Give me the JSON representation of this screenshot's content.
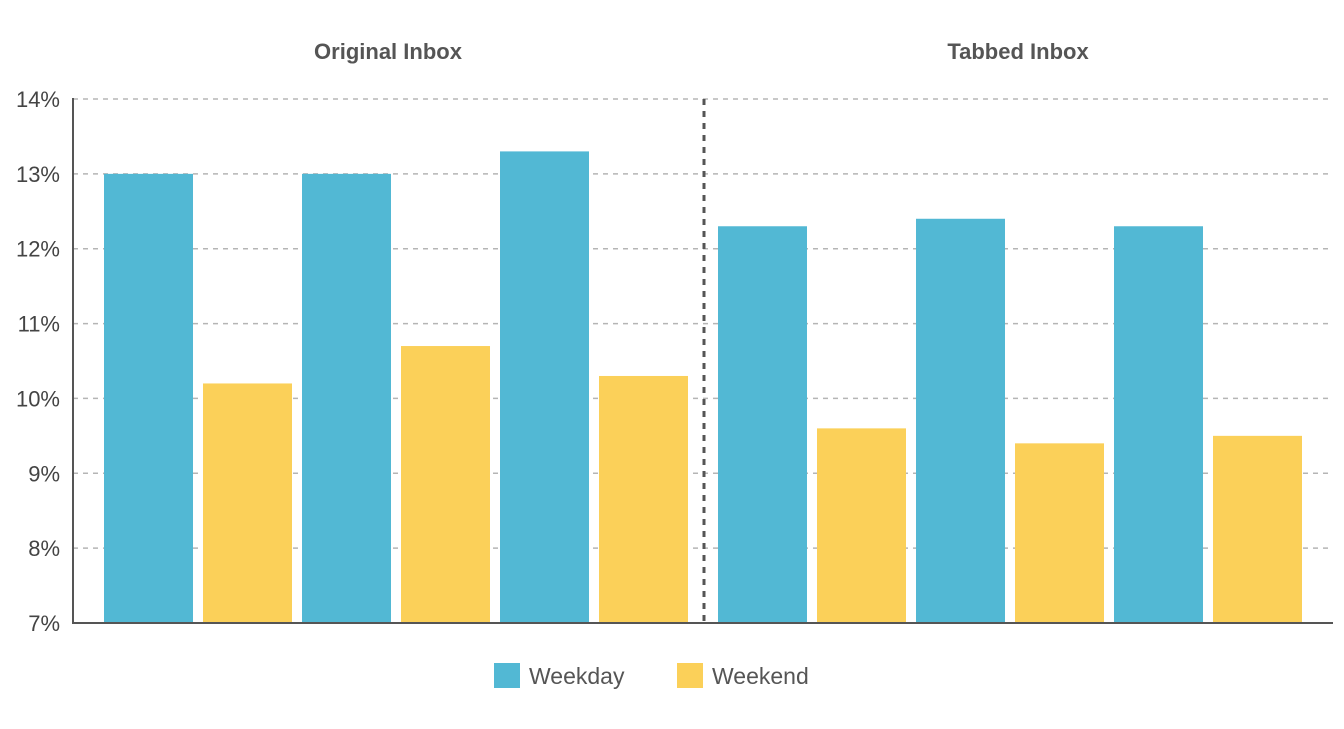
{
  "chart_data": {
    "type": "bar",
    "panels": [
      {
        "title": "Original Inbox",
        "groups": 3,
        "series": [
          {
            "name": "Weekday",
            "values": [
              13.0,
              13.0,
              13.3
            ]
          },
          {
            "name": "Weekend",
            "values": [
              10.2,
              10.7,
              10.3
            ]
          }
        ]
      },
      {
        "title": "Tabbed Inbox",
        "groups": 3,
        "series": [
          {
            "name": "Weekday",
            "values": [
              12.3,
              12.4,
              12.3
            ]
          },
          {
            "name": "Weekend",
            "values": [
              9.6,
              9.4,
              9.5
            ]
          }
        ]
      }
    ],
    "ylim": [
      7,
      14
    ],
    "yticks": [
      "7%",
      "8%",
      "9%",
      "10%",
      "11%",
      "12%",
      "13%",
      "14%"
    ],
    "grid": true,
    "legend": {
      "placement": "bottom-center",
      "items": [
        {
          "name": "Weekday",
          "color": "#52b8d4"
        },
        {
          "name": "Weekend",
          "color": "#fbd059"
        }
      ]
    },
    "colors": {
      "Weekday": "#52b8d4",
      "Weekend": "#fbd059"
    }
  }
}
